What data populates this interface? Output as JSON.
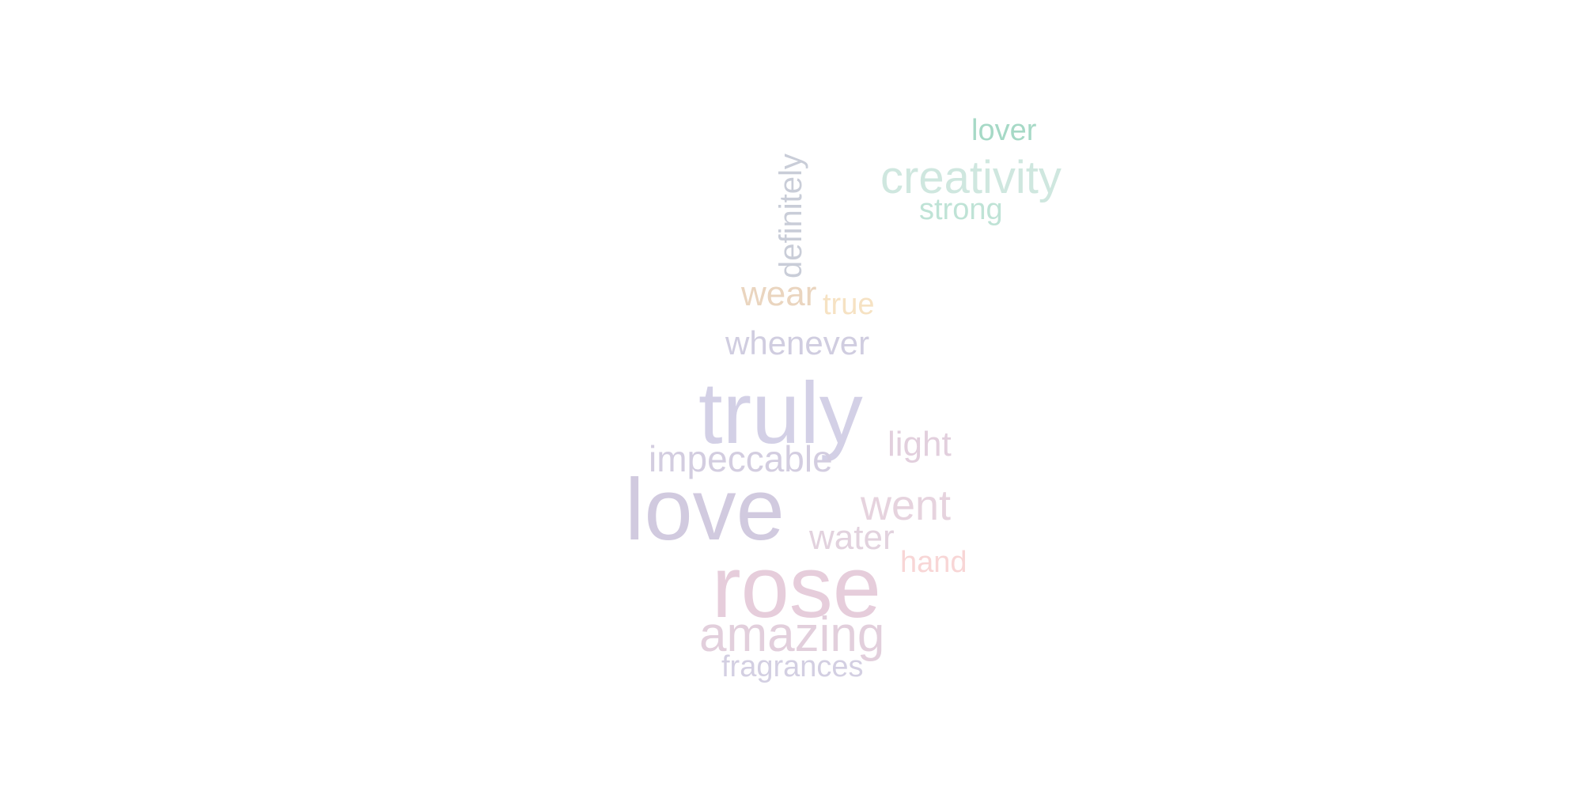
{
  "words": {
    "lover": {
      "text": "lover",
      "color": "#a6d9c6"
    },
    "creativity": {
      "text": "creativity",
      "color": "#cfe7df"
    },
    "strong": {
      "text": "strong",
      "color": "#bfe3d6"
    },
    "definitely": {
      "text": "definitely",
      "color": "#c9cdd8"
    },
    "wear": {
      "text": "wear",
      "color": "#ead5bf"
    },
    "true": {
      "text": "true",
      "color": "#f6e2c3"
    },
    "whenever": {
      "text": "whenever",
      "color": "#d0cde0"
    },
    "truly": {
      "text": "truly",
      "color": "#d3d0e6"
    },
    "light": {
      "text": "light",
      "color": "#e2cfdd"
    },
    "impeccable": {
      "text": "impeccable",
      "color": "#d3cde0"
    },
    "love": {
      "text": "love",
      "color": "#d1cadf"
    },
    "went": {
      "text": "went",
      "color": "#e6d3de"
    },
    "water": {
      "text": "water",
      "color": "#e2d2de"
    },
    "hand": {
      "text": "hand",
      "color": "#f8d6d6"
    },
    "rose": {
      "text": "rose",
      "color": "#e6cddb"
    },
    "amazing": {
      "text": "amazing",
      "color": "#e2cfdc"
    },
    "fragrances": {
      "text": "fragrances",
      "color": "#d3cfe2"
    }
  }
}
